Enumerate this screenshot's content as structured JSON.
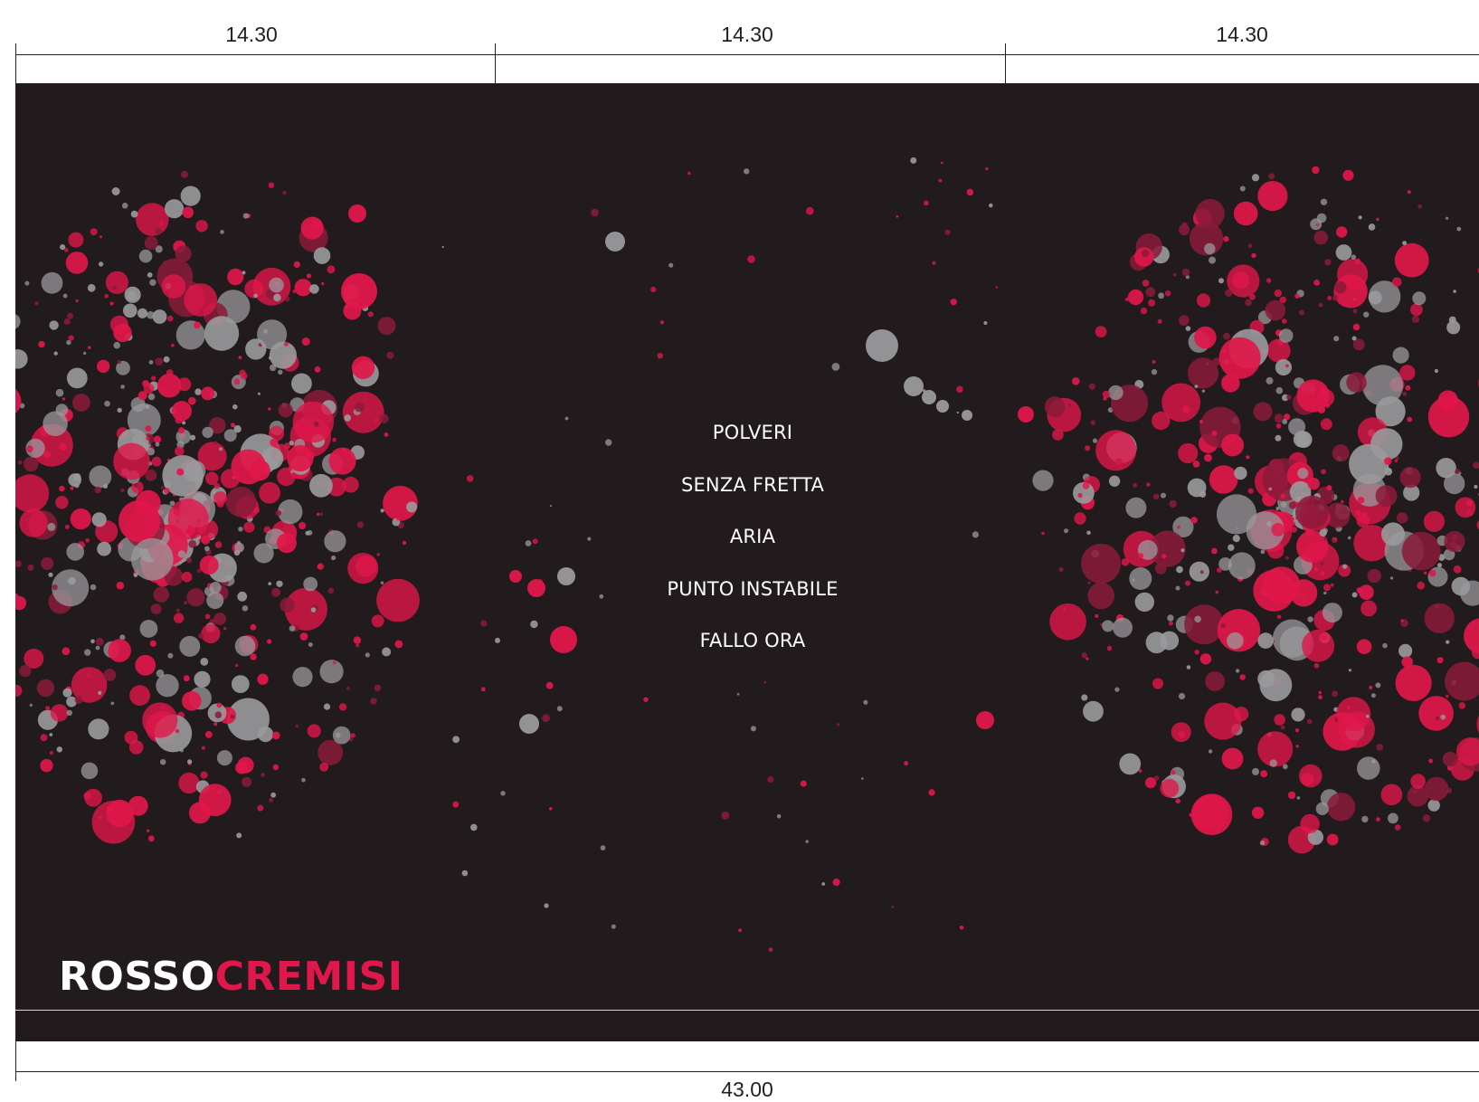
{
  "dimensions": {
    "panel_widths": [
      "14.30",
      "14.30",
      "14.30"
    ],
    "total_width": "43.00"
  },
  "tracklist": [
    "POLVERI",
    "SENZA FRETTA",
    "ARIA",
    "PUNTO INSTABILE",
    "FALLO ORA"
  ],
  "brand": {
    "part1": "ROSSO",
    "part2": "CREMISI"
  },
  "colors": {
    "background": "#211b1d",
    "crimson": "#e0174a",
    "dark_crimson": "#8a1a3a",
    "gray": "#9a9a9c",
    "text": "#ffffff"
  }
}
